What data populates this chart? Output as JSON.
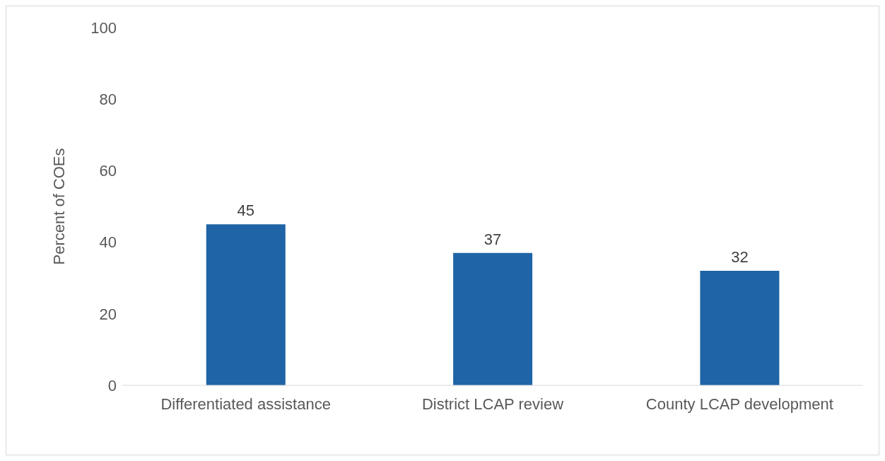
{
  "chart_data": {
    "type": "bar",
    "ylabel": "Percent of COEs",
    "categories": [
      "Differentiated assistance",
      "District LCAP review",
      "County LCAP development"
    ],
    "values": [
      45,
      37,
      32
    ],
    "color": "#1f64a6",
    "ylim": [
      0,
      100
    ],
    "yticks": [
      0,
      20,
      40,
      60,
      80,
      100
    ],
    "grid": false,
    "data_labels": true
  }
}
